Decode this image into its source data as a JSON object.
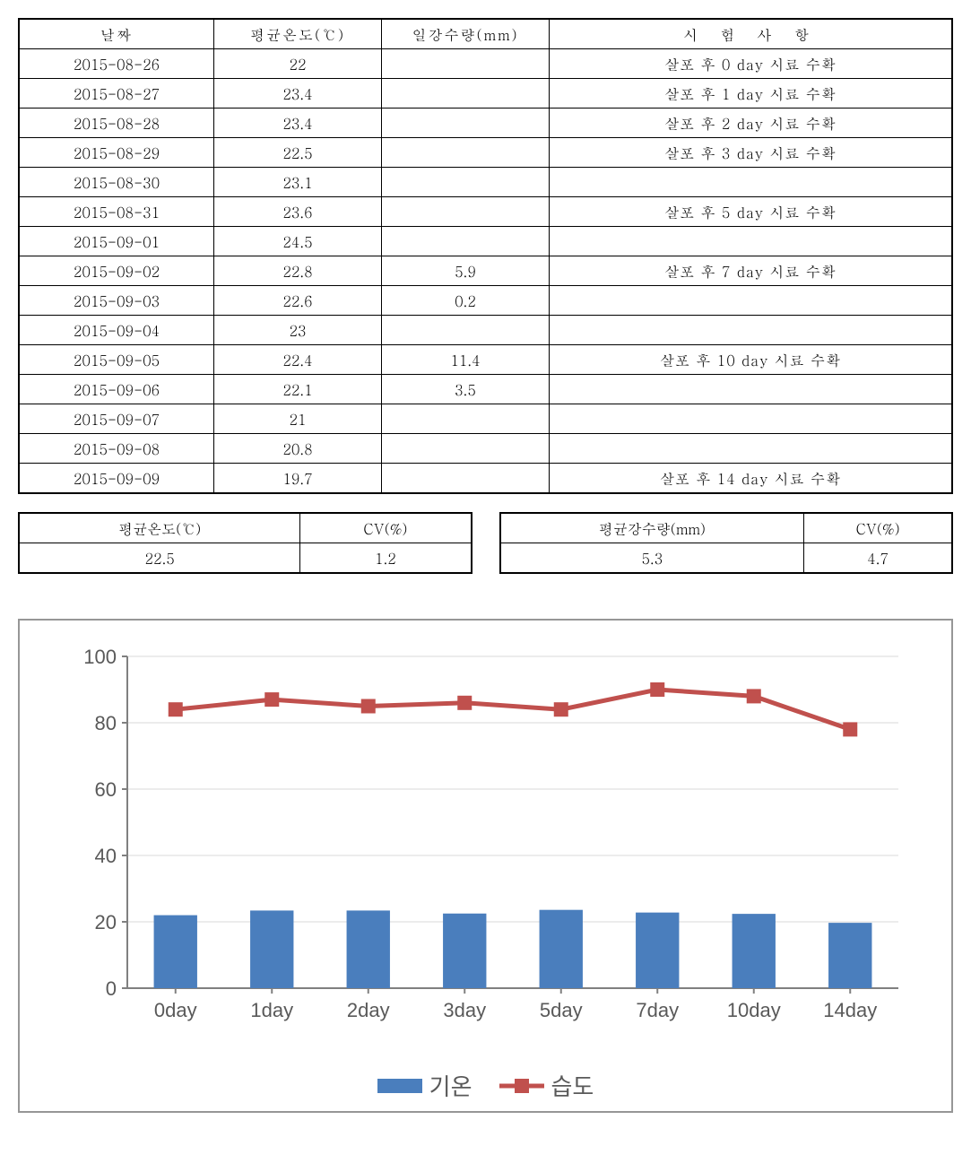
{
  "main_table": {
    "headers": [
      "날짜",
      "평균온도(℃)",
      "일강수량(mm)",
      "시 험 사 항"
    ],
    "rows": [
      {
        "date": "2015-08-26",
        "temp": "22",
        "rain": "",
        "test": "살포 후  0 day 시료 수확"
      },
      {
        "date": "2015-08-27",
        "temp": "23.4",
        "rain": "",
        "test": "살포 후  1 day 시료 수확"
      },
      {
        "date": "2015-08-28",
        "temp": "23.4",
        "rain": "",
        "test": "살포 후  2 day 시료 수확"
      },
      {
        "date": "2015-08-29",
        "temp": "22.5",
        "rain": "",
        "test": "살포 후  3 day 시료 수확"
      },
      {
        "date": "2015-08-30",
        "temp": "23.1",
        "rain": "",
        "test": ""
      },
      {
        "date": "2015-08-31",
        "temp": "23.6",
        "rain": "",
        "test": "살포 후  5 day 시료 수확"
      },
      {
        "date": "2015-09-01",
        "temp": "24.5",
        "rain": "",
        "test": ""
      },
      {
        "date": "2015-09-02",
        "temp": "22.8",
        "rain": "5.9",
        "test": "살포 후  7 day 시료 수확"
      },
      {
        "date": "2015-09-03",
        "temp": "22.6",
        "rain": "0.2",
        "test": ""
      },
      {
        "date": "2015-09-04",
        "temp": "23",
        "rain": "",
        "test": ""
      },
      {
        "date": "2015-09-05",
        "temp": "22.4",
        "rain": "11.4",
        "test": "살포 후  10 day 시료 수확"
      },
      {
        "date": "2015-09-06",
        "temp": "22.1",
        "rain": "3.5",
        "test": ""
      },
      {
        "date": "2015-09-07",
        "temp": "21",
        "rain": "",
        "test": ""
      },
      {
        "date": "2015-09-08",
        "temp": "20.8",
        "rain": "",
        "test": ""
      },
      {
        "date": "2015-09-09",
        "temp": "19.7",
        "rain": "",
        "test": "살포 후  14 day 시료 수확"
      }
    ]
  },
  "summary_left": {
    "headers": [
      "평균온도(℃)",
      "CV(%)"
    ],
    "values": [
      "22.5",
      "1.2"
    ]
  },
  "summary_right": {
    "headers": [
      "평균강수량(mm)",
      "CV(%)"
    ],
    "values": [
      "5.3",
      "4.7"
    ]
  },
  "chart": {
    "type": "bar_line_combo",
    "categories": [
      "0day",
      "1day",
      "2day",
      "3day",
      "5day",
      "7day",
      "10day",
      "14day"
    ],
    "temp_values": [
      22,
      23.4,
      23.4,
      22.5,
      23.6,
      22.8,
      22.4,
      19.7
    ],
    "humidity_values": [
      84,
      87,
      85,
      86,
      84,
      90,
      88,
      78
    ],
    "ylim": [
      0,
      100
    ],
    "ytick_step": 20,
    "yticks": [
      "0",
      "20",
      "40",
      "60",
      "80",
      "100"
    ],
    "bar_color": "#4a7ebd",
    "line_color": "#c0504d",
    "line_width": 5,
    "marker_size": 16,
    "grid_color": "#d9d9d9",
    "axis_color": "#808080",
    "plot_background": "#ffffff",
    "axis_font_size": 22,
    "bar_width_ratio": 0.45,
    "legend": {
      "temp_label": "기온",
      "humidity_label": "습도"
    }
  }
}
